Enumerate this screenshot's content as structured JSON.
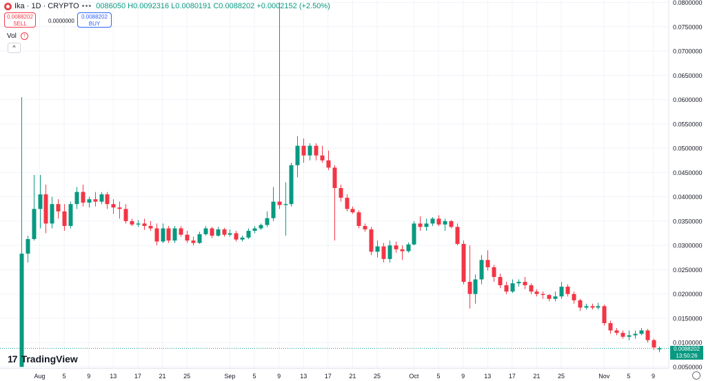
{
  "header": {
    "symbol": "Ika · 1D · CRYPTO",
    "ohlc_text": "0086050 H0.0092316 L0.0080191 C0.0088202 +0.0002152 (+2.50%)"
  },
  "trade": {
    "sell_price": "0.0088202",
    "sell_label": "SELL",
    "spread": "0.0000000",
    "buy_price": "0.0088202",
    "buy_label": "BUY"
  },
  "volume_label": "Vol",
  "volume_warning": "!",
  "collapse_glyph": "^",
  "brand": "TradingView",
  "last_price": {
    "value": "0.0088202",
    "countdown": "13:50:26"
  },
  "colors": {
    "up": "#089981",
    "down": "#f23645",
    "grid": "#f0f3fa",
    "text": "#131722"
  },
  "chart_data": {
    "type": "candlestick",
    "y_ticks": [
      "0.0800000",
      "0.0750000",
      "0.0700000",
      "0.0650000",
      "0.0600000",
      "0.0550000",
      "0.0500000",
      "0.0450000",
      "0.0400000",
      "0.0350000",
      "0.0300000",
      "0.0250000",
      "0.0200000",
      "0.0150000",
      "0.0100000",
      "0.0050000"
    ],
    "ylim": [
      0.0048,
      0.081
    ],
    "x_ticks": [
      {
        "label": "Aug",
        "date": "2025-08-01"
      },
      {
        "label": "5",
        "date": "2025-08-05"
      },
      {
        "label": "9",
        "date": "2025-08-09"
      },
      {
        "label": "13",
        "date": "2025-08-13"
      },
      {
        "label": "17",
        "date": "2025-08-17"
      },
      {
        "label": "21",
        "date": "2025-08-21"
      },
      {
        "label": "25",
        "date": "2025-08-25"
      },
      {
        "label": "Sep",
        "date": "2025-09-01"
      },
      {
        "label": "5",
        "date": "2025-09-05"
      },
      {
        "label": "9",
        "date": "2025-09-09"
      },
      {
        "label": "13",
        "date": "2025-09-13"
      },
      {
        "label": "17",
        "date": "2025-09-17"
      },
      {
        "label": "21",
        "date": "2025-09-21"
      },
      {
        "label": "25",
        "date": "2025-09-25"
      },
      {
        "label": "Oct",
        "date": "2025-10-01"
      },
      {
        "label": "5",
        "date": "2025-10-05"
      },
      {
        "label": "9",
        "date": "2025-10-09"
      },
      {
        "label": "13",
        "date": "2025-10-13"
      },
      {
        "label": "17",
        "date": "2025-10-17"
      },
      {
        "label": "21",
        "date": "2025-10-21"
      },
      {
        "label": "25",
        "date": "2025-10-25"
      },
      {
        "label": "Nov",
        "date": "2025-11-01"
      },
      {
        "label": "5",
        "date": "2025-11-05"
      },
      {
        "label": "9",
        "date": "2025-11-09"
      }
    ],
    "last_price": 0.0088202,
    "candles": [
      {
        "date": "2025-07-29",
        "o": 0.005,
        "h": 0.0605,
        "l": 0.005,
        "c": 0.0283
      },
      {
        "date": "2025-07-30",
        "o": 0.0283,
        "h": 0.032,
        "l": 0.0265,
        "c": 0.0313
      },
      {
        "date": "2025-07-31",
        "o": 0.0313,
        "h": 0.0445,
        "l": 0.031,
        "c": 0.0375
      },
      {
        "date": "2025-08-01",
        "o": 0.0375,
        "h": 0.0445,
        "l": 0.0335,
        "c": 0.0405
      },
      {
        "date": "2025-08-02",
        "o": 0.0405,
        "h": 0.0425,
        "l": 0.0325,
        "c": 0.0345
      },
      {
        "date": "2025-08-03",
        "o": 0.0345,
        "h": 0.04,
        "l": 0.0335,
        "c": 0.0385
      },
      {
        "date": "2025-08-04",
        "o": 0.0385,
        "h": 0.0395,
        "l": 0.0355,
        "c": 0.037
      },
      {
        "date": "2025-08-05",
        "o": 0.037,
        "h": 0.0385,
        "l": 0.033,
        "c": 0.034
      },
      {
        "date": "2025-08-06",
        "o": 0.034,
        "h": 0.039,
        "l": 0.0335,
        "c": 0.0385
      },
      {
        "date": "2025-08-07",
        "o": 0.0385,
        "h": 0.042,
        "l": 0.0375,
        "c": 0.041
      },
      {
        "date": "2025-08-08",
        "o": 0.041,
        "h": 0.0425,
        "l": 0.038,
        "c": 0.0388
      },
      {
        "date": "2025-08-09",
        "o": 0.0388,
        "h": 0.04,
        "l": 0.0378,
        "c": 0.0395
      },
      {
        "date": "2025-08-10",
        "o": 0.0395,
        "h": 0.041,
        "l": 0.038,
        "c": 0.039
      },
      {
        "date": "2025-08-11",
        "o": 0.039,
        "h": 0.041,
        "l": 0.0385,
        "c": 0.0405
      },
      {
        "date": "2025-08-12",
        "o": 0.0405,
        "h": 0.041,
        "l": 0.0375,
        "c": 0.0385
      },
      {
        "date": "2025-08-13",
        "o": 0.0385,
        "h": 0.0395,
        "l": 0.0365,
        "c": 0.0378
      },
      {
        "date": "2025-08-14",
        "o": 0.0378,
        "h": 0.039,
        "l": 0.0355,
        "c": 0.0375
      },
      {
        "date": "2025-08-15",
        "o": 0.0375,
        "h": 0.0385,
        "l": 0.0345,
        "c": 0.035
      },
      {
        "date": "2025-08-16",
        "o": 0.035,
        "h": 0.0355,
        "l": 0.034,
        "c": 0.0343
      },
      {
        "date": "2025-08-17",
        "o": 0.0343,
        "h": 0.0352,
        "l": 0.0338,
        "c": 0.0345
      },
      {
        "date": "2025-08-18",
        "o": 0.0345,
        "h": 0.0355,
        "l": 0.0332,
        "c": 0.034
      },
      {
        "date": "2025-08-19",
        "o": 0.034,
        "h": 0.035,
        "l": 0.033,
        "c": 0.0335
      },
      {
        "date": "2025-08-20",
        "o": 0.0335,
        "h": 0.0345,
        "l": 0.03,
        "c": 0.0308
      },
      {
        "date": "2025-08-21",
        "o": 0.0308,
        "h": 0.0345,
        "l": 0.0305,
        "c": 0.0335
      },
      {
        "date": "2025-08-22",
        "o": 0.0335,
        "h": 0.034,
        "l": 0.0305,
        "c": 0.031
      },
      {
        "date": "2025-08-23",
        "o": 0.031,
        "h": 0.034,
        "l": 0.0305,
        "c": 0.0335
      },
      {
        "date": "2025-08-24",
        "o": 0.0335,
        "h": 0.034,
        "l": 0.0318,
        "c": 0.0322
      },
      {
        "date": "2025-08-25",
        "o": 0.0322,
        "h": 0.033,
        "l": 0.0305,
        "c": 0.031
      },
      {
        "date": "2025-08-26",
        "o": 0.031,
        "h": 0.0318,
        "l": 0.03,
        "c": 0.0305
      },
      {
        "date": "2025-08-27",
        "o": 0.0305,
        "h": 0.0328,
        "l": 0.0303,
        "c": 0.0323
      },
      {
        "date": "2025-08-28",
        "o": 0.0323,
        "h": 0.034,
        "l": 0.032,
        "c": 0.0335
      },
      {
        "date": "2025-08-29",
        "o": 0.0335,
        "h": 0.0338,
        "l": 0.0315,
        "c": 0.032
      },
      {
        "date": "2025-08-30",
        "o": 0.032,
        "h": 0.0338,
        "l": 0.0318,
        "c": 0.0333
      },
      {
        "date": "2025-08-31",
        "o": 0.0333,
        "h": 0.0336,
        "l": 0.0318,
        "c": 0.0322
      },
      {
        "date": "2025-09-01",
        "o": 0.0322,
        "h": 0.0333,
        "l": 0.0318,
        "c": 0.0325
      },
      {
        "date": "2025-09-02",
        "o": 0.0325,
        "h": 0.033,
        "l": 0.0308,
        "c": 0.0312
      },
      {
        "date": "2025-09-03",
        "o": 0.0312,
        "h": 0.032,
        "l": 0.0308,
        "c": 0.0316
      },
      {
        "date": "2025-09-04",
        "o": 0.0316,
        "h": 0.0335,
        "l": 0.0313,
        "c": 0.033
      },
      {
        "date": "2025-09-05",
        "o": 0.033,
        "h": 0.034,
        "l": 0.0325,
        "c": 0.0335
      },
      {
        "date": "2025-09-06",
        "o": 0.0335,
        "h": 0.0345,
        "l": 0.0332,
        "c": 0.0342
      },
      {
        "date": "2025-09-07",
        "o": 0.0342,
        "h": 0.037,
        "l": 0.0338,
        "c": 0.0356
      },
      {
        "date": "2025-09-08",
        "o": 0.0356,
        "h": 0.042,
        "l": 0.035,
        "c": 0.039
      },
      {
        "date": "2025-09-09",
        "o": 0.039,
        "h": 0.08,
        "l": 0.0375,
        "c": 0.0383
      },
      {
        "date": "2025-09-10",
        "o": 0.0383,
        "h": 0.043,
        "l": 0.032,
        "c": 0.0385
      },
      {
        "date": "2025-09-11",
        "o": 0.0385,
        "h": 0.047,
        "l": 0.038,
        "c": 0.0465
      },
      {
        "date": "2025-09-12",
        "o": 0.0465,
        "h": 0.0525,
        "l": 0.044,
        "c": 0.0505
      },
      {
        "date": "2025-09-13",
        "o": 0.0505,
        "h": 0.052,
        "l": 0.047,
        "c": 0.0485
      },
      {
        "date": "2025-09-14",
        "o": 0.0485,
        "h": 0.051,
        "l": 0.0475,
        "c": 0.0505
      },
      {
        "date": "2025-09-15",
        "o": 0.0505,
        "h": 0.051,
        "l": 0.0475,
        "c": 0.0485
      },
      {
        "date": "2025-09-16",
        "o": 0.0485,
        "h": 0.0505,
        "l": 0.047,
        "c": 0.0475
      },
      {
        "date": "2025-09-17",
        "o": 0.0475,
        "h": 0.0495,
        "l": 0.0455,
        "c": 0.046
      },
      {
        "date": "2025-09-18",
        "o": 0.046,
        "h": 0.0465,
        "l": 0.031,
        "c": 0.0418
      },
      {
        "date": "2025-09-19",
        "o": 0.0418,
        "h": 0.0425,
        "l": 0.039,
        "c": 0.0398
      },
      {
        "date": "2025-09-20",
        "o": 0.0398,
        "h": 0.0405,
        "l": 0.037,
        "c": 0.0375
      },
      {
        "date": "2025-09-21",
        "o": 0.0375,
        "h": 0.038,
        "l": 0.0365,
        "c": 0.0368
      },
      {
        "date": "2025-09-22",
        "o": 0.0368,
        "h": 0.0372,
        "l": 0.0335,
        "c": 0.034
      },
      {
        "date": "2025-09-23",
        "o": 0.034,
        "h": 0.0345,
        "l": 0.0328,
        "c": 0.0333
      },
      {
        "date": "2025-09-24",
        "o": 0.0333,
        "h": 0.0338,
        "l": 0.028,
        "c": 0.0287
      },
      {
        "date": "2025-09-25",
        "o": 0.0287,
        "h": 0.031,
        "l": 0.0275,
        "c": 0.0298
      },
      {
        "date": "2025-09-26",
        "o": 0.0298,
        "h": 0.0305,
        "l": 0.0265,
        "c": 0.0272
      },
      {
        "date": "2025-09-27",
        "o": 0.0272,
        "h": 0.031,
        "l": 0.0265,
        "c": 0.03
      },
      {
        "date": "2025-09-28",
        "o": 0.03,
        "h": 0.0308,
        "l": 0.0285,
        "c": 0.0292
      },
      {
        "date": "2025-09-29",
        "o": 0.0292,
        "h": 0.03,
        "l": 0.027,
        "c": 0.0288
      },
      {
        "date": "2025-09-30",
        "o": 0.0288,
        "h": 0.0306,
        "l": 0.0285,
        "c": 0.0302
      },
      {
        "date": "2025-10-01",
        "o": 0.0302,
        "h": 0.035,
        "l": 0.03,
        "c": 0.0345
      },
      {
        "date": "2025-10-02",
        "o": 0.0345,
        "h": 0.036,
        "l": 0.033,
        "c": 0.0338
      },
      {
        "date": "2025-10-03",
        "o": 0.0338,
        "h": 0.0355,
        "l": 0.033,
        "c": 0.0345
      },
      {
        "date": "2025-10-04",
        "o": 0.0345,
        "h": 0.0358,
        "l": 0.034,
        "c": 0.0355
      },
      {
        "date": "2025-10-05",
        "o": 0.0355,
        "h": 0.0362,
        "l": 0.034,
        "c": 0.0343
      },
      {
        "date": "2025-10-06",
        "o": 0.0343,
        "h": 0.0355,
        "l": 0.033,
        "c": 0.035
      },
      {
        "date": "2025-10-07",
        "o": 0.035,
        "h": 0.0352,
        "l": 0.0335,
        "c": 0.0338
      },
      {
        "date": "2025-10-08",
        "o": 0.0338,
        "h": 0.0345,
        "l": 0.03,
        "c": 0.0303
      },
      {
        "date": "2025-10-09",
        "o": 0.0303,
        "h": 0.031,
        "l": 0.022,
        "c": 0.0225
      },
      {
        "date": "2025-10-10",
        "o": 0.0225,
        "h": 0.03,
        "l": 0.017,
        "c": 0.02
      },
      {
        "date": "2025-10-11",
        "o": 0.02,
        "h": 0.024,
        "l": 0.018,
        "c": 0.023
      },
      {
        "date": "2025-10-12",
        "o": 0.023,
        "h": 0.028,
        "l": 0.022,
        "c": 0.027
      },
      {
        "date": "2025-10-13",
        "o": 0.027,
        "h": 0.029,
        "l": 0.0248,
        "c": 0.0255
      },
      {
        "date": "2025-10-14",
        "o": 0.0255,
        "h": 0.026,
        "l": 0.0225,
        "c": 0.0235
      },
      {
        "date": "2025-10-15",
        "o": 0.0235,
        "h": 0.0242,
        "l": 0.0212,
        "c": 0.0218
      },
      {
        "date": "2025-10-16",
        "o": 0.0218,
        "h": 0.0225,
        "l": 0.02,
        "c": 0.0205
      },
      {
        "date": "2025-10-17",
        "o": 0.0205,
        "h": 0.023,
        "l": 0.0202,
        "c": 0.0222
      },
      {
        "date": "2025-10-18",
        "o": 0.0222,
        "h": 0.023,
        "l": 0.0215,
        "c": 0.0225
      },
      {
        "date": "2025-10-19",
        "o": 0.0225,
        "h": 0.0235,
        "l": 0.021,
        "c": 0.0218
      },
      {
        "date": "2025-10-20",
        "o": 0.0218,
        "h": 0.0222,
        "l": 0.02,
        "c": 0.0205
      },
      {
        "date": "2025-10-21",
        "o": 0.0205,
        "h": 0.021,
        "l": 0.0195,
        "c": 0.02
      },
      {
        "date": "2025-10-22",
        "o": 0.02,
        "h": 0.0205,
        "l": 0.019,
        "c": 0.0198
      },
      {
        "date": "2025-10-23",
        "o": 0.0198,
        "h": 0.02,
        "l": 0.0185,
        "c": 0.019
      },
      {
        "date": "2025-10-24",
        "o": 0.019,
        "h": 0.0205,
        "l": 0.0185,
        "c": 0.0195
      },
      {
        "date": "2025-10-25",
        "o": 0.0195,
        "h": 0.0225,
        "l": 0.019,
        "c": 0.0215
      },
      {
        "date": "2025-10-26",
        "o": 0.0215,
        "h": 0.022,
        "l": 0.0195,
        "c": 0.02
      },
      {
        "date": "2025-10-27",
        "o": 0.02,
        "h": 0.0205,
        "l": 0.018,
        "c": 0.0187
      },
      {
        "date": "2025-10-28",
        "o": 0.0187,
        "h": 0.019,
        "l": 0.0165,
        "c": 0.0172
      },
      {
        "date": "2025-10-29",
        "o": 0.0172,
        "h": 0.018,
        "l": 0.0168,
        "c": 0.0175
      },
      {
        "date": "2025-10-30",
        "o": 0.0175,
        "h": 0.018,
        "l": 0.0168,
        "c": 0.0172
      },
      {
        "date": "2025-10-31",
        "o": 0.0172,
        "h": 0.0182,
        "l": 0.0168,
        "c": 0.0175
      },
      {
        "date": "2025-11-01",
        "o": 0.0175,
        "h": 0.0178,
        "l": 0.0135,
        "c": 0.014
      },
      {
        "date": "2025-11-02",
        "o": 0.014,
        "h": 0.0145,
        "l": 0.0118,
        "c": 0.0125
      },
      {
        "date": "2025-11-03",
        "o": 0.0125,
        "h": 0.013,
        "l": 0.0115,
        "c": 0.012
      },
      {
        "date": "2025-11-04",
        "o": 0.012,
        "h": 0.0125,
        "l": 0.0108,
        "c": 0.0112
      },
      {
        "date": "2025-11-05",
        "o": 0.0112,
        "h": 0.0125,
        "l": 0.0105,
        "c": 0.0115
      },
      {
        "date": "2025-11-06",
        "o": 0.0115,
        "h": 0.0125,
        "l": 0.0108,
        "c": 0.0118
      },
      {
        "date": "2025-11-07",
        "o": 0.0118,
        "h": 0.013,
        "l": 0.0115,
        "c": 0.0125
      },
      {
        "date": "2025-11-08",
        "o": 0.0125,
        "h": 0.0128,
        "l": 0.01,
        "c": 0.0105
      },
      {
        "date": "2025-11-09",
        "o": 0.0105,
        "h": 0.0108,
        "l": 0.0085,
        "c": 0.009
      },
      {
        "date": "2025-11-10",
        "o": 0.0086,
        "h": 0.0092,
        "l": 0.008,
        "c": 0.0088
      }
    ]
  }
}
